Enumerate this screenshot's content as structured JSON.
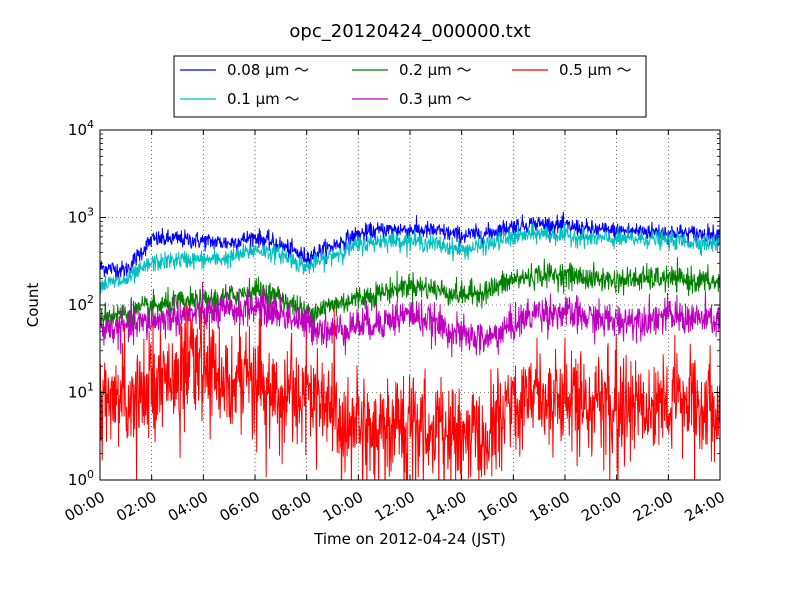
{
  "chart_data": {
    "type": "line",
    "title": "opc_20120424_000000.txt",
    "xlabel": "Time on 2012-04-24 (JST)",
    "ylabel": "Count",
    "yscale": "log",
    "xlim": [
      "00:00",
      "24:00"
    ],
    "ylim": [
      1,
      10000
    ],
    "grid": true,
    "legend_position": "top",
    "x_tick_labels": [
      "00:00",
      "02:00",
      "04:00",
      "06:00",
      "08:00",
      "10:00",
      "12:00",
      "14:00",
      "16:00",
      "18:00",
      "20:00",
      "22:00",
      "24:00"
    ],
    "y_tick_labels": [
      {
        "base": "10",
        "exp": "0"
      },
      {
        "base": "10",
        "exp": "1"
      },
      {
        "base": "10",
        "exp": "2"
      },
      {
        "base": "10",
        "exp": "3"
      },
      {
        "base": "10",
        "exp": "4"
      }
    ],
    "x": [
      "00:00",
      "01:00",
      "02:00",
      "03:00",
      "04:00",
      "05:00",
      "06:00",
      "07:00",
      "08:00",
      "09:00",
      "10:00",
      "11:00",
      "12:00",
      "13:00",
      "14:00",
      "15:00",
      "16:00",
      "17:00",
      "18:00",
      "19:00",
      "20:00",
      "21:00",
      "22:00",
      "23:00",
      "24:00"
    ],
    "series": [
      {
        "name": "0.08 μm ～",
        "color": "#0000ff",
        "noise": 0.05,
        "values": [
          270,
          250,
          560,
          570,
          540,
          510,
          600,
          480,
          350,
          470,
          640,
          720,
          730,
          700,
          620,
          660,
          800,
          850,
          800,
          730,
          700,
          700,
          680,
          650,
          640
        ]
      },
      {
        "name": "0.1 μm ～",
        "color": "#00bfbf",
        "noise": 0.05,
        "values": [
          170,
          190,
          300,
          330,
          330,
          340,
          430,
          380,
          270,
          370,
          480,
          550,
          540,
          500,
          420,
          490,
          590,
          660,
          620,
          580,
          560,
          570,
          550,
          520,
          500
        ]
      },
      {
        "name": "0.2 μm ～",
        "color": "#008000",
        "noise": 0.07,
        "values": [
          75,
          80,
          95,
          105,
          110,
          125,
          150,
          120,
          80,
          100,
          120,
          140,
          170,
          150,
          130,
          145,
          195,
          220,
          220,
          200,
          190,
          200,
          200,
          190,
          180
        ]
      },
      {
        "name": "0.3 μm ～",
        "color": "#bf00bf",
        "noise": 0.1,
        "values": [
          55,
          55,
          65,
          75,
          80,
          85,
          95,
          80,
          60,
          50,
          60,
          65,
          80,
          60,
          45,
          40,
          60,
          85,
          80,
          70,
          65,
          70,
          75,
          70,
          65
        ]
      },
      {
        "name": "0.5 μm ～",
        "color": "#ff0000",
        "noise": 0.28,
        "values": [
          6,
          9,
          13,
          20,
          19,
          15,
          12,
          10,
          10,
          6,
          4,
          4,
          4.5,
          3.5,
          3,
          3,
          9,
          10,
          9,
          8,
          7,
          8,
          8,
          8,
          7
        ]
      }
    ]
  }
}
